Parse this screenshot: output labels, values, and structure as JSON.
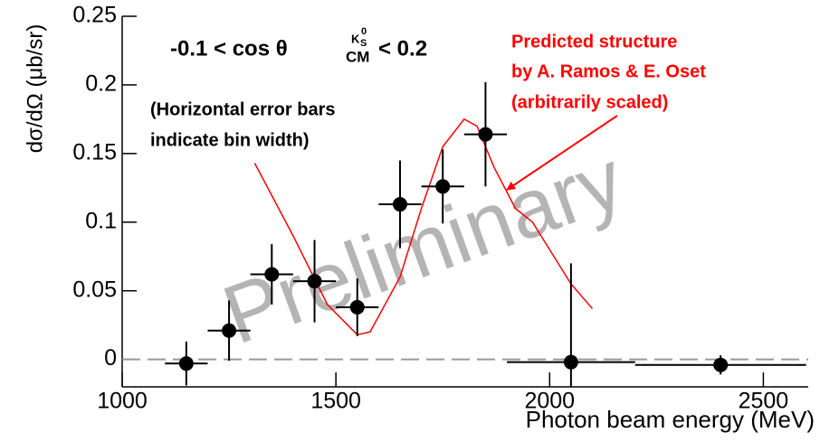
{
  "chart_data": {
    "type": "errorbar",
    "x_label": "Photon beam energy (MeV)",
    "y_label": "dσ/dΩ (μb/sr)",
    "cut_label": {
      "prefix": "-0.1 < cos θ",
      "sup": "K",
      "sup_sub": "S",
      "sup_sup": "0",
      "sub": "CM",
      "suffix": "< 0.2"
    },
    "note": [
      "(Horizontal error bars",
      "indicate bin width)"
    ],
    "prediction_label": [
      "Predicted structure",
      "by A. Ramos & E. Oset",
      "(arbitrarily scaled)"
    ],
    "watermark": "Preliminary",
    "xlim": [
      1000,
      2605
    ],
    "ylim": [
      -0.02,
      0.25
    ],
    "xticks": [
      1000,
      1500,
      2000,
      2500
    ],
    "yticks": [
      0,
      0.05,
      0.1,
      0.15,
      0.2,
      0.25
    ],
    "grid": false,
    "reference_line": 0,
    "points": {
      "color": "#000000",
      "x": [
        1150,
        1250,
        1350,
        1450,
        1550,
        1650,
        1750,
        1850,
        2050,
        2400
      ],
      "values": [
        -0.003,
        0.021,
        0.062,
        0.057,
        0.038,
        0.113,
        0.126,
        0.164,
        -0.002,
        -0.004
      ],
      "xerr": [
        50,
        50,
        50,
        50,
        50,
        50,
        50,
        50,
        150,
        200
      ],
      "yerr": [
        0.016,
        0.022,
        0.022,
        0.03,
        0.021,
        0.032,
        0.027,
        0.038,
        0.072,
        0.007
      ]
    },
    "curve": {
      "color": "#ff0000",
      "x": [
        1310,
        1400,
        1480,
        1550,
        1580,
        1650,
        1700,
        1750,
        1800,
        1830,
        1870,
        1920,
        1960,
        2000,
        2050,
        2100
      ],
      "values": [
        0.143,
        0.09,
        0.04,
        0.018,
        0.02,
        0.06,
        0.11,
        0.155,
        0.175,
        0.17,
        0.14,
        0.11,
        0.1,
        0.08,
        0.055,
        0.037
      ]
    }
  }
}
